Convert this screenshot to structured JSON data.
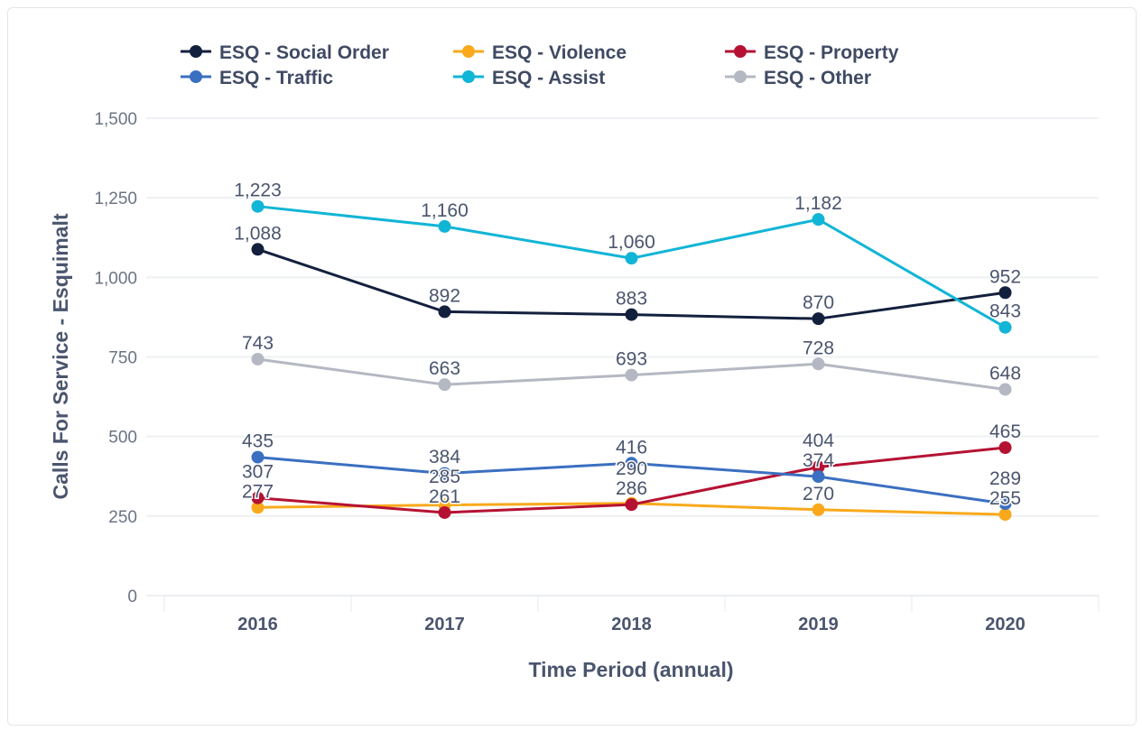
{
  "chart_data": {
    "type": "line",
    "title": "",
    "xlabel": "Time Period (annual)",
    "ylabel": "Calls For Service - Esquimalt",
    "categories": [
      "2016",
      "2017",
      "2018",
      "2019",
      "2020"
    ],
    "ylim": [
      0,
      1500
    ],
    "yticks": [
      0,
      250,
      500,
      750,
      1000,
      1250,
      1500
    ],
    "ytick_labels": [
      "0",
      "250",
      "500",
      "750",
      "1,000",
      "1,250",
      "1,500"
    ],
    "grid": true,
    "legend_position": "top",
    "series": [
      {
        "name": "ESQ - Social Order",
        "color": "#13203d",
        "values": [
          1088,
          892,
          883,
          870,
          952
        ]
      },
      {
        "name": "ESQ - Violence",
        "color": "#f9a91b",
        "values": [
          277,
          285,
          290,
          270,
          255
        ]
      },
      {
        "name": "ESQ - Property",
        "color": "#b51233",
        "values": [
          307,
          261,
          286,
          404,
          465
        ]
      },
      {
        "name": "ESQ - Traffic",
        "color": "#3b6fc1",
        "values": [
          435,
          384,
          416,
          374,
          289
        ]
      },
      {
        "name": "ESQ - Assist",
        "color": "#11b5d6",
        "values": [
          1223,
          1160,
          1060,
          1182,
          843
        ]
      },
      {
        "name": "ESQ - Other",
        "color": "#b4b8c2",
        "values": [
          743,
          663,
          693,
          728,
          648
        ]
      }
    ]
  }
}
